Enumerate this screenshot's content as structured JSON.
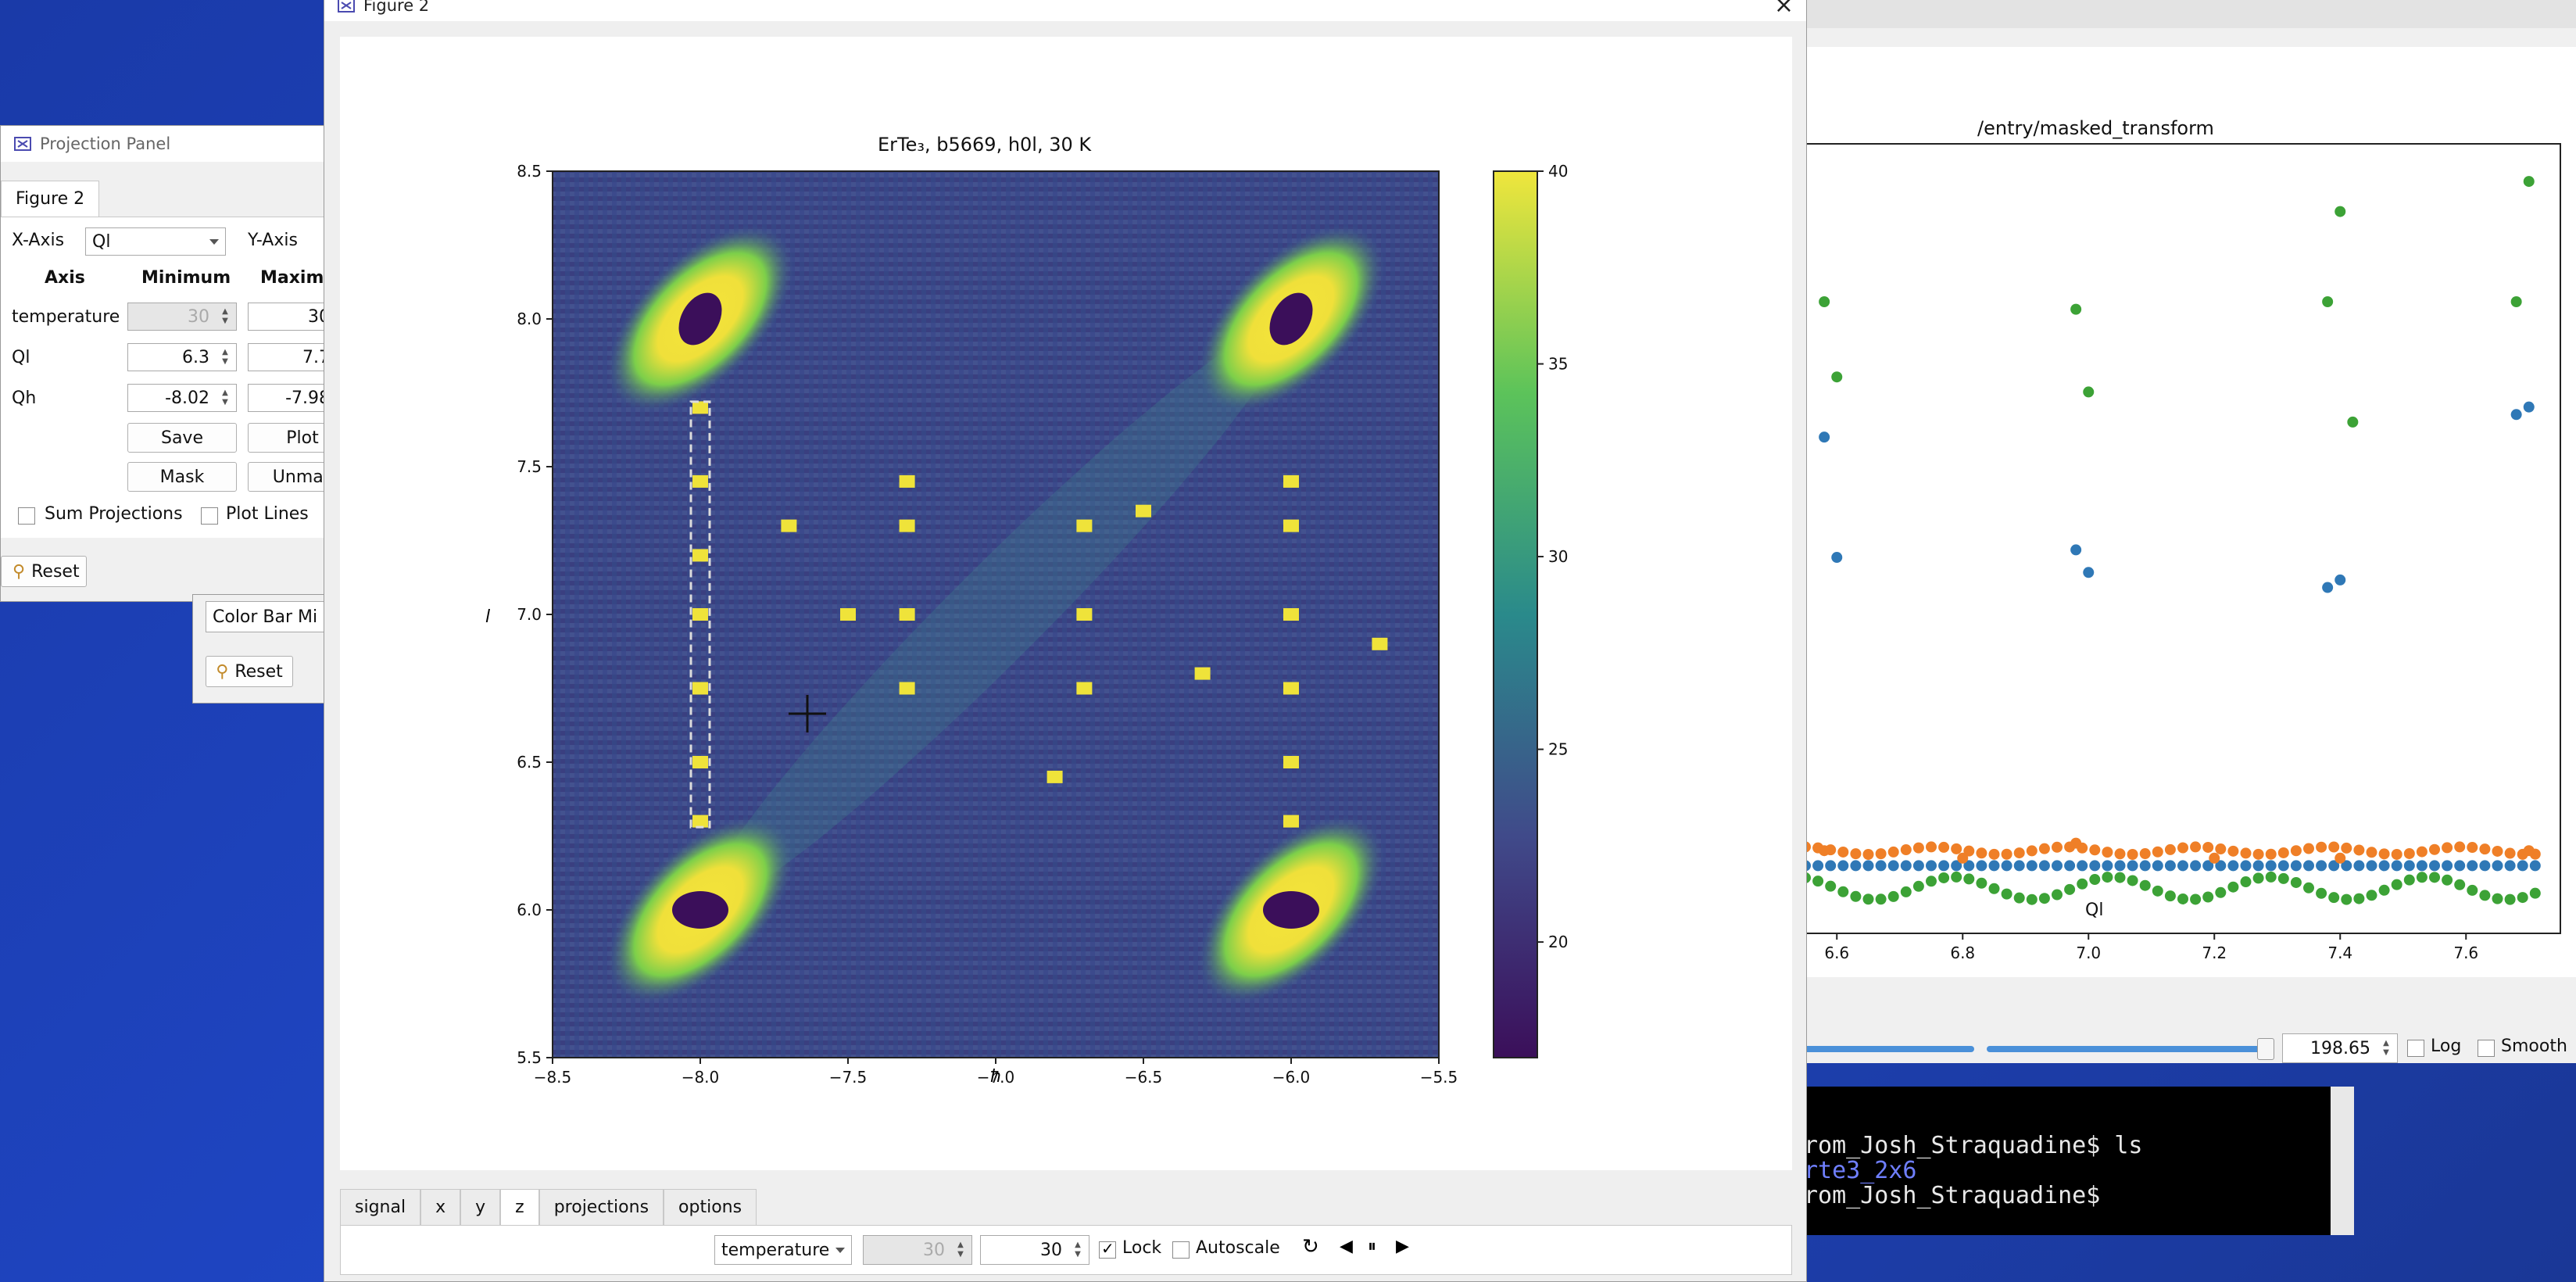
{
  "colors": {
    "viridis_low": "#3b0f5a",
    "viridis_high": "#f0e63c",
    "series_blue": "#2f78b6",
    "series_orange": "#ef7f27",
    "series_green": "#3ca236"
  },
  "projection_panel": {
    "title": "Projection Panel",
    "tab": "Figure 2",
    "x_axis_label": "X-Axis",
    "x_axis_value": "Ql",
    "y_axis_label": "Y-Axis",
    "headers": [
      "Axis",
      "Minimum",
      "Maximum"
    ],
    "header_max_short": "Maximu",
    "rows": [
      {
        "axis": "temperature",
        "min": "30",
        "max": "30"
      },
      {
        "axis": "Ql",
        "min": "6.3",
        "max": "7.7"
      },
      {
        "axis": "Qh",
        "min": "-8.02",
        "max": "-7.98"
      }
    ],
    "save": "Save",
    "plot": "Plot",
    "mask": "Mask",
    "unmask": "Unmas",
    "sum_projections": "Sum Projections",
    "plot_lines": "Plot Lines",
    "reset": "Reset",
    "color_bar": "Color Bar Mi",
    "reset2": "Reset"
  },
  "figure2": {
    "title": "Figure 2",
    "close": "×",
    "chart_title": "ErTe₃, b5669, h0l, 30 K",
    "xlabel": "h",
    "ylabel": "l",
    "xticks": [
      "−8.5",
      "−8.0",
      "−7.5",
      "−7.0",
      "−6.5",
      "−6.0",
      "−5.5"
    ],
    "yticks": [
      "5.5",
      "6.0",
      "6.5",
      "7.0",
      "7.5",
      "8.0",
      "8.5"
    ],
    "cbar_ticks": [
      "20",
      "25",
      "30",
      "35",
      "40"
    ],
    "tabs": [
      "signal",
      "x",
      "y",
      "z",
      "projections",
      "options"
    ],
    "active_tab": "z",
    "z_axis": "temperature",
    "z_min": "30",
    "z_max": "30",
    "lock": "Lock",
    "autoscale": "Autoscale"
  },
  "right_plot": {
    "title": "/entry/masked_transform",
    "xlabel": "Ql",
    "xticks": [
      "6.6",
      "6.8",
      "7.0",
      "7.2",
      "7.4",
      "7.6"
    ],
    "value": "198.65",
    "log": "Log",
    "smooth": "Smooth"
  },
  "terminal": {
    "lines": [
      "rom_Josh_Straquadine$ ls",
      "rte3_2x6",
      "rom_Josh_Straquadine$ "
    ]
  },
  "chart_data": [
    {
      "type": "heatmap",
      "title": "ErTe₃, b5669, h0l, 30 K",
      "xlabel": "h",
      "ylabel": "l",
      "xlim": [
        -8.5,
        -5.5
      ],
      "ylim": [
        5.5,
        8.5
      ],
      "colorbar": [
        17,
        40
      ],
      "bragg_peaks": [
        {
          "h": -8.0,
          "l": 8.0
        },
        {
          "h": -6.0,
          "l": 8.0
        },
        {
          "h": -8.0,
          "l": 6.0
        },
        {
          "h": -6.0,
          "l": 6.0
        }
      ]
    },
    {
      "type": "scatter",
      "title": "/entry/masked_transform",
      "xlabel": "Ql",
      "xlim": [
        6.55,
        7.75
      ],
      "series": [
        {
          "color": "blue",
          "points": [
            [
              6.58,
              6.6
            ],
            [
              6.6,
              5.0
            ],
            [
              6.98,
              5.1
            ],
            [
              7.0,
              4.8
            ],
            [
              7.38,
              4.6
            ],
            [
              7.4,
              4.7
            ],
            [
              7.68,
              6.9
            ],
            [
              7.7,
              7.0
            ]
          ]
        },
        {
          "color": "green",
          "points": [
            [
              6.58,
              8.4
            ],
            [
              6.6,
              7.4
            ],
            [
              6.98,
              8.3
            ],
            [
              7.0,
              7.2
            ],
            [
              7.38,
              8.4
            ],
            [
              7.4,
              9.6
            ],
            [
              7.42,
              6.8
            ],
            [
              7.68,
              8.4
            ],
            [
              7.7,
              10.0
            ]
          ]
        },
        {
          "color": "orange",
          "points": [
            [
              6.58,
              1.1
            ],
            [
              6.8,
              1.0
            ],
            [
              6.98,
              1.2
            ],
            [
              7.2,
              1.0
            ],
            [
              7.4,
              1.0
            ],
            [
              7.7,
              1.1
            ]
          ]
        }
      ]
    }
  ]
}
